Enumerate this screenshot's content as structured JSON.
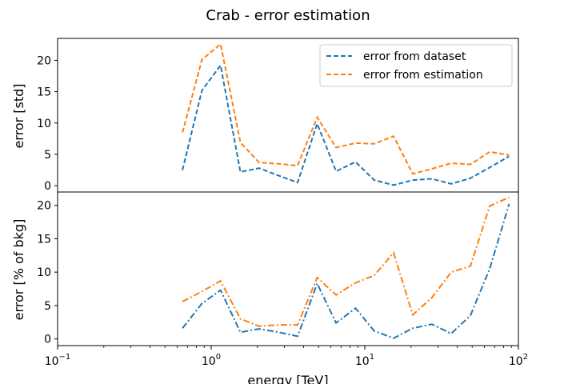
{
  "chart_data": {
    "type": "line",
    "title": "Crab - error estimation",
    "xlabel": "energy [TeV]",
    "xscale": "log",
    "xlim": [
      0.1,
      100
    ],
    "xticks": [
      {
        "value": 0.1,
        "base": "10",
        "exp": "−1"
      },
      {
        "value": 1,
        "base": "10",
        "exp": "0"
      },
      {
        "value": 10,
        "base": "10",
        "exp": "1"
      },
      {
        "value": 100,
        "base": "10",
        "exp": "2"
      }
    ],
    "x": [
      0.65,
      0.87,
      1.15,
      1.55,
      2.05,
      2.75,
      3.65,
      4.9,
      6.5,
      8.7,
      11.5,
      15.4,
      20.5,
      27.4,
      36.5,
      48.7,
      65,
      87
    ],
    "panels": [
      {
        "ylabel": "error [std]",
        "ylim": [
          -1,
          23.5
        ],
        "yticks": [
          0,
          5,
          10,
          15,
          20
        ],
        "legend": "top-right",
        "linestyle": "dashed",
        "series": [
          {
            "name": "error from dataset",
            "color": "#1f77b4",
            "values": [
              2.5,
              15.2,
              19.2,
              2.2,
              2.8,
              1.6,
              0.5,
              9.9,
              2.3,
              3.8,
              0.9,
              0.1,
              0.9,
              1.1,
              0.3,
              1.2,
              2.9,
              4.7
            ]
          },
          {
            "name": "error from estimation",
            "color": "#ff7f0e",
            "values": [
              8.5,
              20.1,
              22.6,
              6.9,
              3.7,
              3.5,
              3.2,
              10.9,
              6.1,
              6.8,
              6.7,
              7.9,
              1.9,
              2.7,
              3.6,
              3.4,
              5.4,
              4.9
            ]
          }
        ]
      },
      {
        "ylabel": "error [% of bkg]",
        "ylim": [
          -1,
          22
        ],
        "yticks": [
          0,
          5,
          10,
          15,
          20
        ],
        "linestyle": "dashdot",
        "series": [
          {
            "color": "#1f77b4",
            "values": [
              1.6,
              5.3,
              7.3,
              1.0,
              1.5,
              1.0,
              0.4,
              8.3,
              2.4,
              4.6,
              1.2,
              0.1,
              1.6,
              2.2,
              0.8,
              3.5,
              10.5,
              20.2
            ]
          },
          {
            "color": "#ff7f0e",
            "values": [
              5.6,
              7.1,
              8.7,
              3.0,
              1.9,
              2.1,
              2.1,
              9.2,
              6.6,
              8.4,
              9.5,
              12.9,
              3.6,
              6.2,
              10.0,
              10.9,
              19.9,
              21.2
            ]
          }
        ]
      }
    ]
  }
}
